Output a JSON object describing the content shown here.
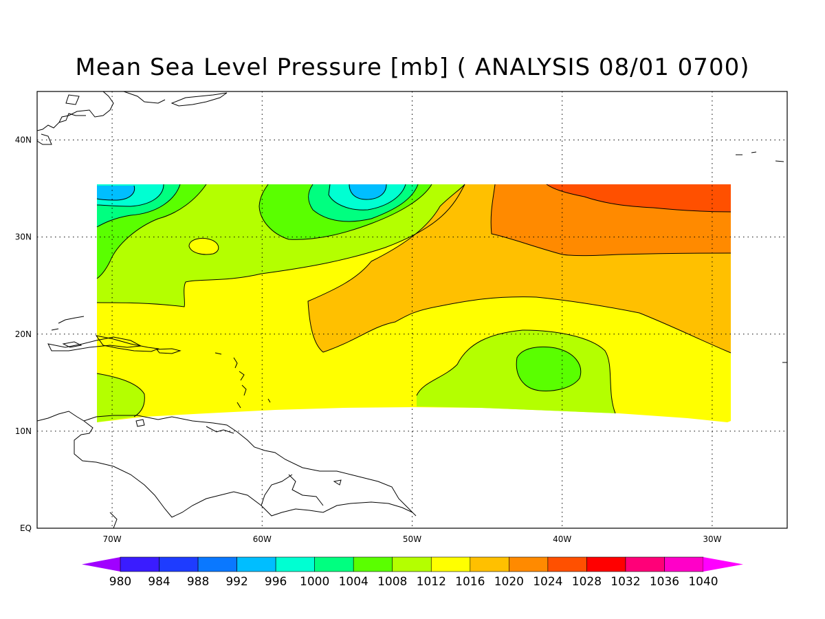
{
  "title": "Mean Sea Level Pressure [mb] ( ANALYSIS 08/01 0700)",
  "map": {
    "lon_range": [
      -75,
      -25
    ],
    "lat_range": [
      0,
      45
    ],
    "grid": "dotted",
    "x_ticks": [
      {
        "lon": -70,
        "label": "70W"
      },
      {
        "lon": -60,
        "label": "60W"
      },
      {
        "lon": -50,
        "label": "50W"
      },
      {
        "lon": -40,
        "label": "40W"
      },
      {
        "lon": -30,
        "label": "30W"
      }
    ],
    "y_ticks": [
      {
        "lat": 0,
        "label": "EQ"
      },
      {
        "lat": 10,
        "label": "10N"
      },
      {
        "lat": 20,
        "label": "20N"
      },
      {
        "lat": 30,
        "label": "30N"
      },
      {
        "lat": 40,
        "label": "40N"
      }
    ]
  },
  "colorbar": {
    "levels": [
      "980",
      "984",
      "988",
      "992",
      "996",
      "1000",
      "1004",
      "1008",
      "1012",
      "1016",
      "1020",
      "1024",
      "1028",
      "1032",
      "1036",
      "1040"
    ],
    "colors": [
      "#a000ff",
      "#3a1cff",
      "#1e3cff",
      "#0a78ff",
      "#00beff",
      "#00ffd2",
      "#00ff80",
      "#5aff00",
      "#b4ff00",
      "#ffff00",
      "#ffc000",
      "#ff8a00",
      "#ff5000",
      "#ff0000",
      "#ff0078",
      "#ff00c8",
      "#ff00ff"
    ]
  },
  "chart_data": {
    "type": "heatmap",
    "title": "Mean Sea Level Pressure [mb] ( ANALYSIS 08/01 0700)",
    "units": "mb",
    "xlim": [
      -75,
      -25
    ],
    "ylim": [
      0,
      45
    ],
    "data_extent": {
      "lon": [
        -71,
        -29
      ],
      "lat": [
        11,
        35.5
      ]
    },
    "features": [
      {
        "type": "low",
        "lon": -53,
        "lat": 34.5,
        "value_range": [
          992,
          996
        ]
      },
      {
        "type": "low",
        "lon": -69,
        "lat": 34.5,
        "value_range": [
          992,
          996
        ]
      },
      {
        "type": "high",
        "lon": -32,
        "lat": 34,
        "value_range": [
          1024,
          1028
        ]
      },
      {
        "type": "low",
        "lon": -41,
        "lat": 16.5,
        "value_range": [
          1004,
          1008
        ]
      }
    ]
  }
}
